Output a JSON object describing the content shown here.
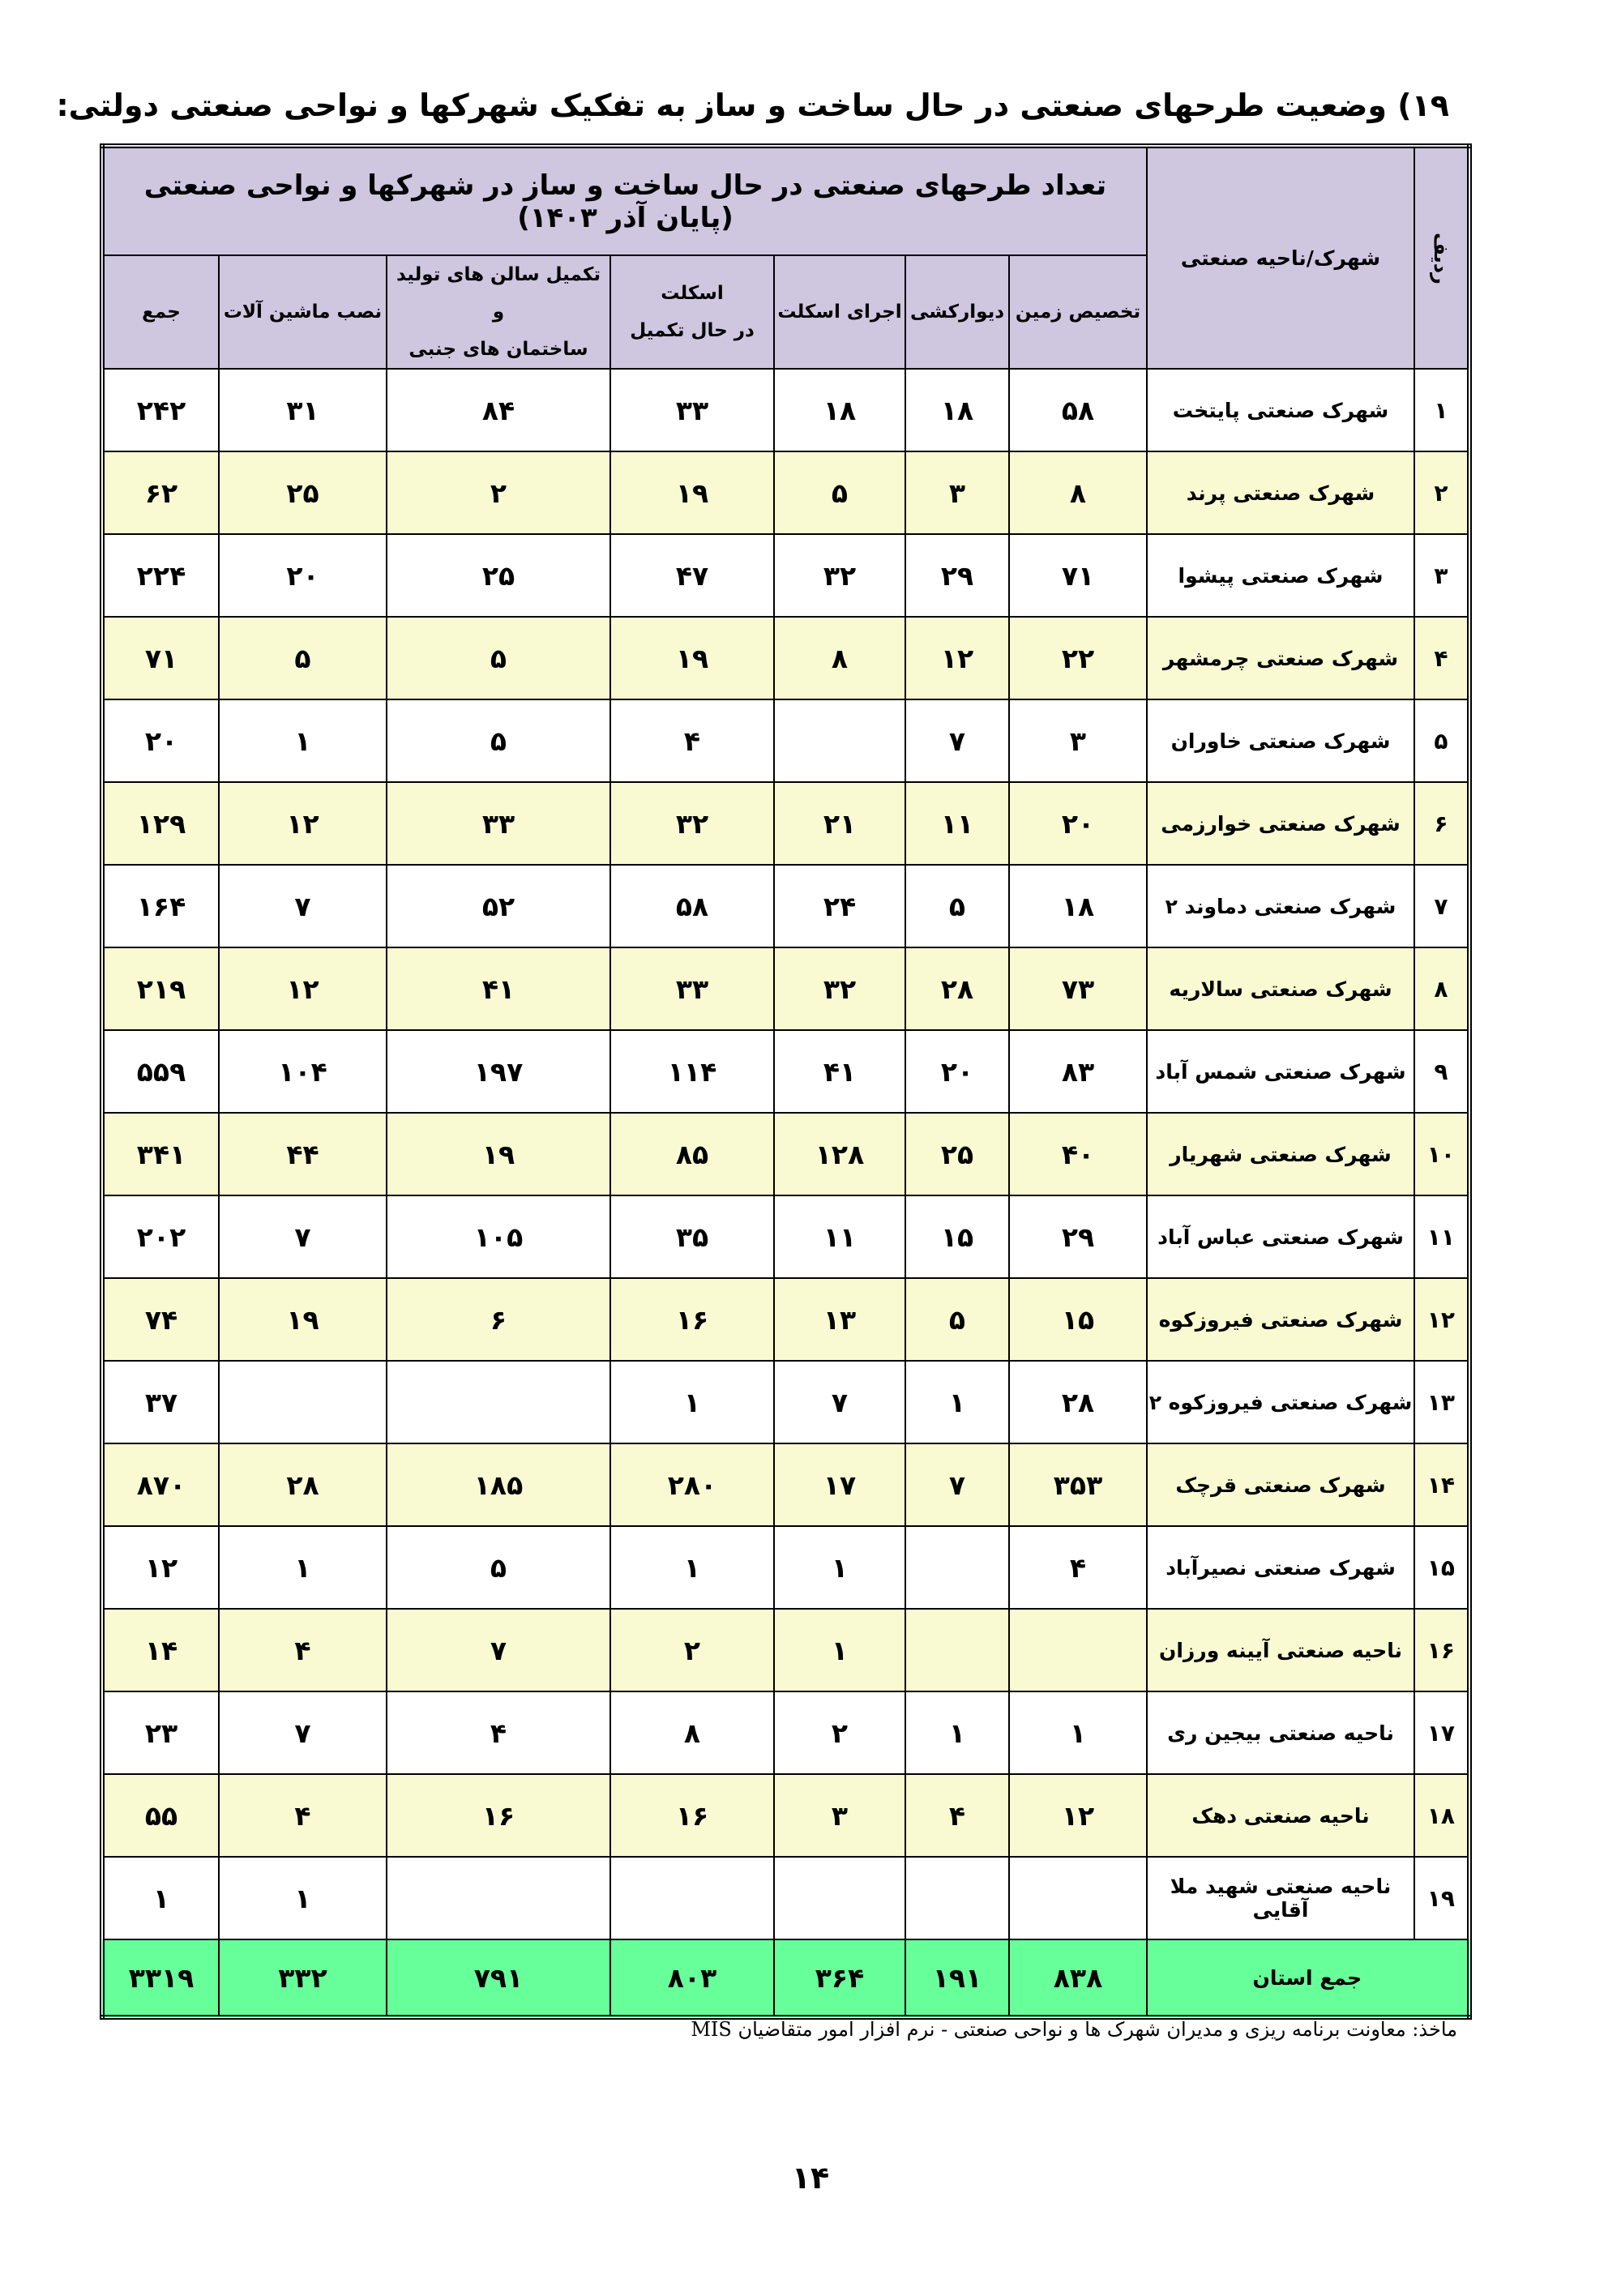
{
  "title": "۱۹) وضعیت طرحهای صنعتی در حال ساخت و ساز به تفکیک شهرکها و نواحی صنعتی دولتی:",
  "table": {
    "caption": "تعداد طرحهای صنعتی در حال ساخت و ساز در شهرکها و نواحی صنعتی (پایان  آذر ۱۴۰۳)",
    "columns": [
      [
        "ردیف"
      ],
      [
        "شهرک/ناحیه صنعتی"
      ],
      [
        "تخصیص زمین"
      ],
      [
        "دیوارکشی"
      ],
      [
        "اجرای اسکلت"
      ],
      [
        "اسکلت",
        "در حال تکمیل"
      ],
      [
        "تکمیل سالن های تولید و",
        "ساختمان های جنبی"
      ],
      [
        "نصب ماشین آلات"
      ],
      [
        "جمع"
      ]
    ],
    "rows": [
      [
        "۱",
        "شهرک صنعتی پایتخت",
        "۵۸",
        "۱۸",
        "۱۸",
        "۳۳",
        "۸۴",
        "۳۱",
        "۲۴۲"
      ],
      [
        "۲",
        "شهرک صنعتی پرند",
        "۸",
        "۳",
        "۵",
        "۱۹",
        "۲",
        "۲۵",
        "۶۲"
      ],
      [
        "۳",
        "شهرک صنعتی پیشوا",
        "۷۱",
        "۲۹",
        "۳۲",
        "۴۷",
        "۲۵",
        "۲۰",
        "۲۲۴"
      ],
      [
        "۴",
        "شهرک صنعتی چرمشهر",
        "۲۲",
        "۱۲",
        "۸",
        "۱۹",
        "۵",
        "۵",
        "۷۱"
      ],
      [
        "۵",
        "شهرک صنعتی خاوران",
        "۳",
        "۷",
        null,
        "۴",
        "۵",
        "۱",
        "۲۰"
      ],
      [
        "۶",
        "شهرک صنعتی خوارزمی",
        "۲۰",
        "۱۱",
        "۲۱",
        "۳۲",
        "۳۳",
        "۱۲",
        "۱۲۹"
      ],
      [
        "۷",
        "شهرک صنعتی دماوند ۲",
        "۱۸",
        "۵",
        "۲۴",
        "۵۸",
        "۵۲",
        "۷",
        "۱۶۴"
      ],
      [
        "۸",
        "شهرک صنعتی سالاریه",
        "۷۳",
        "۲۸",
        "۳۲",
        "۳۳",
        "۴۱",
        "۱۲",
        "۲۱۹"
      ],
      [
        "۹",
        "شهرک صنعتی شمس آباد",
        "۸۳",
        "۲۰",
        "۴۱",
        "۱۱۴",
        "۱۹۷",
        "۱۰۴",
        "۵۵۹"
      ],
      [
        "۱۰",
        "شهرک صنعتی شهریار",
        "۴۰",
        "۲۵",
        "۱۲۸",
        "۸۵",
        "۱۹",
        "۴۴",
        "۳۴۱"
      ],
      [
        "۱۱",
        "شهرک صنعتی عباس آباد",
        "۲۹",
        "۱۵",
        "۱۱",
        "۳۵",
        "۱۰۵",
        "۷",
        "۲۰۲"
      ],
      [
        "۱۲",
        "شهرک صنعتی فیروزکوه",
        "۱۵",
        "۵",
        "۱۳",
        "۱۶",
        "۶",
        "۱۹",
        "۷۴"
      ],
      [
        "۱۳",
        "شهرک صنعتی فیروزکوه ۲",
        "۲۸",
        "۱",
        "۷",
        "۱",
        null,
        null,
        "۳۷"
      ],
      [
        "۱۴",
        "شهرک صنعتی قرچک",
        "۳۵۳",
        "۷",
        "۱۷",
        "۲۸۰",
        "۱۸۵",
        "۲۸",
        "۸۷۰"
      ],
      [
        "۱۵",
        "شهرک صنعتی نصیرآباد",
        "۴",
        null,
        "۱",
        "۱",
        "۵",
        "۱",
        "۱۲"
      ],
      [
        "۱۶",
        "ناحیه صنعتی آیینه ورزان",
        null,
        null,
        "۱",
        "۲",
        "۷",
        "۴",
        "۱۴"
      ],
      [
        "۱۷",
        "ناحیه صنعتی بیجین ری",
        "۱",
        "۱",
        "۲",
        "۸",
        "۴",
        "۷",
        "۲۳"
      ],
      [
        "۱۸",
        "ناحیه صنعتی دهک",
        "۱۲",
        "۴",
        "۳",
        "۱۶",
        "۱۶",
        "۴",
        "۵۵"
      ],
      [
        "۱۹",
        "ناحیه صنعتی شهید ملا آقایی",
        null,
        null,
        null,
        null,
        null,
        "۱",
        "۱"
      ]
    ],
    "total_row": [
      "جمع استان",
      "۸۳۸",
      "۱۹۱",
      "۳۶۴",
      "۸۰۳",
      "۷۹۱",
      "۳۳۲",
      "۳۳۱۹"
    ]
  },
  "source": "ماخذ: معاونت برنامه ریزی و  مدیران شهرک ها و نواحی صنعتی - نرم افزار امور متقاضیان MIS",
  "page_number": "۱۴"
}
